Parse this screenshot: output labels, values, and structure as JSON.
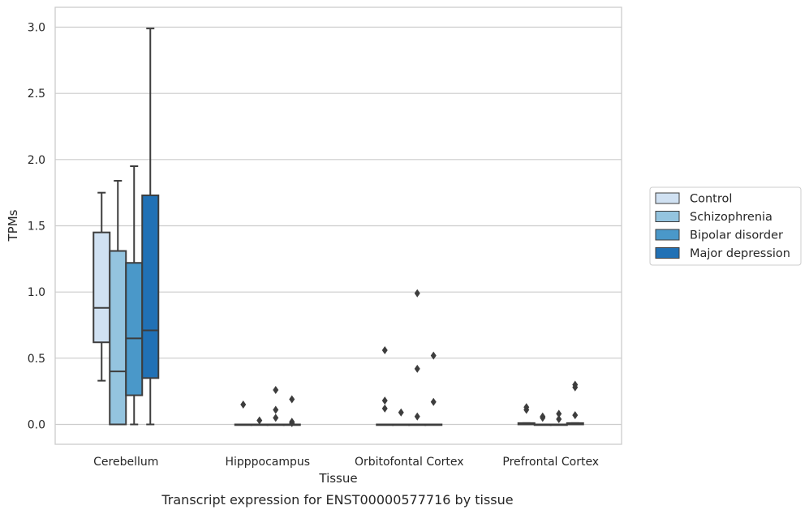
{
  "chart_data": {
    "type": "box",
    "title": "",
    "caption": "Transcript expression for ENST00000577716 by tissue",
    "xlabel": "Tissue",
    "ylabel": "TPMs",
    "ylim": [
      -0.15,
      3.15
    ],
    "yticks": [
      0.0,
      0.5,
      1.0,
      1.5,
      2.0,
      2.5,
      3.0
    ],
    "ytick_labels": [
      "0.0",
      "0.5",
      "1.0",
      "1.5",
      "2.0",
      "2.5",
      "3.0"
    ],
    "grid": "horizontal",
    "legend_position": "right",
    "categories": [
      "Cerebellum",
      "Hipppocampus",
      "Orbitofontal Cortex",
      "Prefrontal Cortex"
    ],
    "series": [
      {
        "name": "Control",
        "color": "#d0e1f2",
        "boxes": [
          {
            "whislo": 0.33,
            "q1": 0.62,
            "med": 0.88,
            "q3": 1.45,
            "whishi": 1.75,
            "fliers": []
          },
          {
            "whislo": 0.0,
            "q1": 0.0,
            "med": 0.0,
            "q3": 0.0,
            "whishi": 0.0,
            "fliers": [
              0.15
            ]
          },
          {
            "whislo": 0.0,
            "q1": 0.0,
            "med": 0.0,
            "q3": 0.0,
            "whishi": 0.0,
            "fliers": [
              0.12,
              0.18,
              0.56
            ]
          },
          {
            "whislo": 0.0,
            "q1": 0.0,
            "med": 0.005,
            "q3": 0.01,
            "whishi": 0.01,
            "fliers": [
              0.11,
              0.13
            ]
          }
        ]
      },
      {
        "name": "Schizophrenia",
        "color": "#94c4df",
        "boxes": [
          {
            "whislo": 0.0,
            "q1": 0.0,
            "med": 0.4,
            "q3": 1.31,
            "whishi": 1.84,
            "fliers": []
          },
          {
            "whislo": 0.0,
            "q1": 0.0,
            "med": 0.0,
            "q3": 0.0,
            "whishi": 0.0,
            "fliers": [
              0.03
            ]
          },
          {
            "whislo": 0.0,
            "q1": 0.0,
            "med": 0.0,
            "q3": 0.0,
            "whishi": 0.0,
            "fliers": [
              0.09
            ]
          },
          {
            "whislo": 0.0,
            "q1": 0.0,
            "med": 0.0,
            "q3": 0.0,
            "whishi": 0.0,
            "fliers": [
              0.05,
              0.06
            ]
          }
        ]
      },
      {
        "name": "Bipolar disorder",
        "color": "#4a98c9",
        "boxes": [
          {
            "whislo": 0.0,
            "q1": 0.22,
            "med": 0.65,
            "q3": 1.22,
            "whishi": 1.95,
            "fliers": []
          },
          {
            "whislo": 0.0,
            "q1": 0.0,
            "med": 0.0,
            "q3": 0.0,
            "whishi": 0.0,
            "fliers": [
              0.05,
              0.11,
              0.26
            ]
          },
          {
            "whislo": 0.0,
            "q1": 0.0,
            "med": 0.0,
            "q3": 0.0,
            "whishi": 0.0,
            "fliers": [
              0.06,
              0.42,
              0.99
            ]
          },
          {
            "whislo": 0.0,
            "q1": 0.0,
            "med": 0.0,
            "q3": 0.0,
            "whishi": 0.0,
            "fliers": [
              0.04,
              0.08
            ]
          }
        ]
      },
      {
        "name": "Major depression",
        "color": "#2171b5",
        "boxes": [
          {
            "whislo": 0.0,
            "q1": 0.35,
            "med": 0.71,
            "q3": 1.73,
            "whishi": 2.99,
            "fliers": []
          },
          {
            "whislo": 0.0,
            "q1": 0.0,
            "med": 0.0,
            "q3": 0.0,
            "whishi": 0.0,
            "fliers": [
              0.01,
              0.02,
              0.19
            ]
          },
          {
            "whislo": 0.0,
            "q1": 0.0,
            "med": 0.0,
            "q3": 0.0,
            "whishi": 0.0,
            "fliers": [
              0.17,
              0.52
            ]
          },
          {
            "whislo": 0.0,
            "q1": 0.0,
            "med": 0.005,
            "q3": 0.01,
            "whishi": 0.01,
            "fliers": [
              0.07,
              0.28,
              0.3
            ]
          }
        ]
      }
    ]
  }
}
